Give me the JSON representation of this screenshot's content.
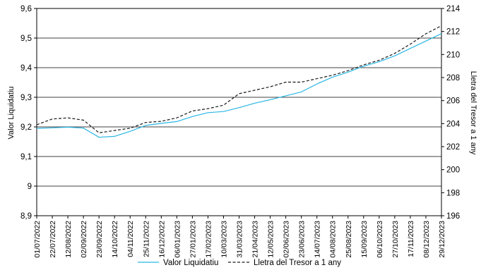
{
  "chart_data": {
    "type": "line",
    "ylabel_left": "Valor Liquidatiu",
    "ylabel_right": "Lletra del Tresor a 1 any",
    "ylim_left": [
      8.9,
      9.6
    ],
    "ylim_right": [
      196,
      214
    ],
    "yticks_left": [
      "9,6",
      "9,5",
      "9,4",
      "9,3",
      "9,2",
      "9,1",
      "9",
      "8,9"
    ],
    "yticks_right": [
      "214",
      "212",
      "210",
      "208",
      "206",
      "204",
      "202",
      "200",
      "198",
      "196"
    ],
    "grid": "horizontal",
    "legend_position": "bottom",
    "x_ticks": [
      "01/07/2022",
      "22/07/2022",
      "12/08/2022",
      "02/09/2022",
      "23/09/2022",
      "14/10/2022",
      "04/11/2022",
      "25/11/2022",
      "16/12/2022",
      "06/01/2023",
      "27/01/2023",
      "17/02/2023",
      "10/03/2023",
      "31/03/2023",
      "21/04/2023",
      "12/05/2023",
      "02/06/2023",
      "23/06/2023",
      "14/07/2023",
      "04/08/2023",
      "25/08/2023",
      "15/09/2023",
      "06/10/2023",
      "27/10/2023",
      "17/11/2023",
      "08/12/2023",
      "29/12/2023"
    ],
    "series": [
      {
        "name": "Valor Liquidatiu",
        "axis": "left",
        "color": "#29b6e3",
        "style": "solid",
        "values": [
          9.195,
          9.197,
          9.199,
          9.196,
          9.165,
          9.168,
          9.185,
          9.205,
          9.212,
          9.218,
          9.235,
          9.248,
          9.252,
          9.265,
          9.28,
          9.292,
          9.305,
          9.318,
          9.345,
          9.368,
          9.385,
          9.405,
          9.42,
          9.44,
          9.465,
          9.49,
          9.515
        ]
      },
      {
        "name": "Lletra del Tresor a 1 any",
        "axis": "right",
        "color": "#1a1a1a",
        "style": "dashed",
        "values": [
          203.9,
          204.4,
          204.5,
          204.3,
          203.2,
          203.4,
          203.6,
          204.1,
          204.2,
          204.5,
          205.1,
          205.3,
          205.6,
          206.6,
          206.9,
          207.2,
          207.6,
          207.6,
          207.9,
          208.2,
          208.6,
          209.1,
          209.5,
          210.1,
          210.9,
          211.8,
          212.5
        ]
      }
    ]
  }
}
